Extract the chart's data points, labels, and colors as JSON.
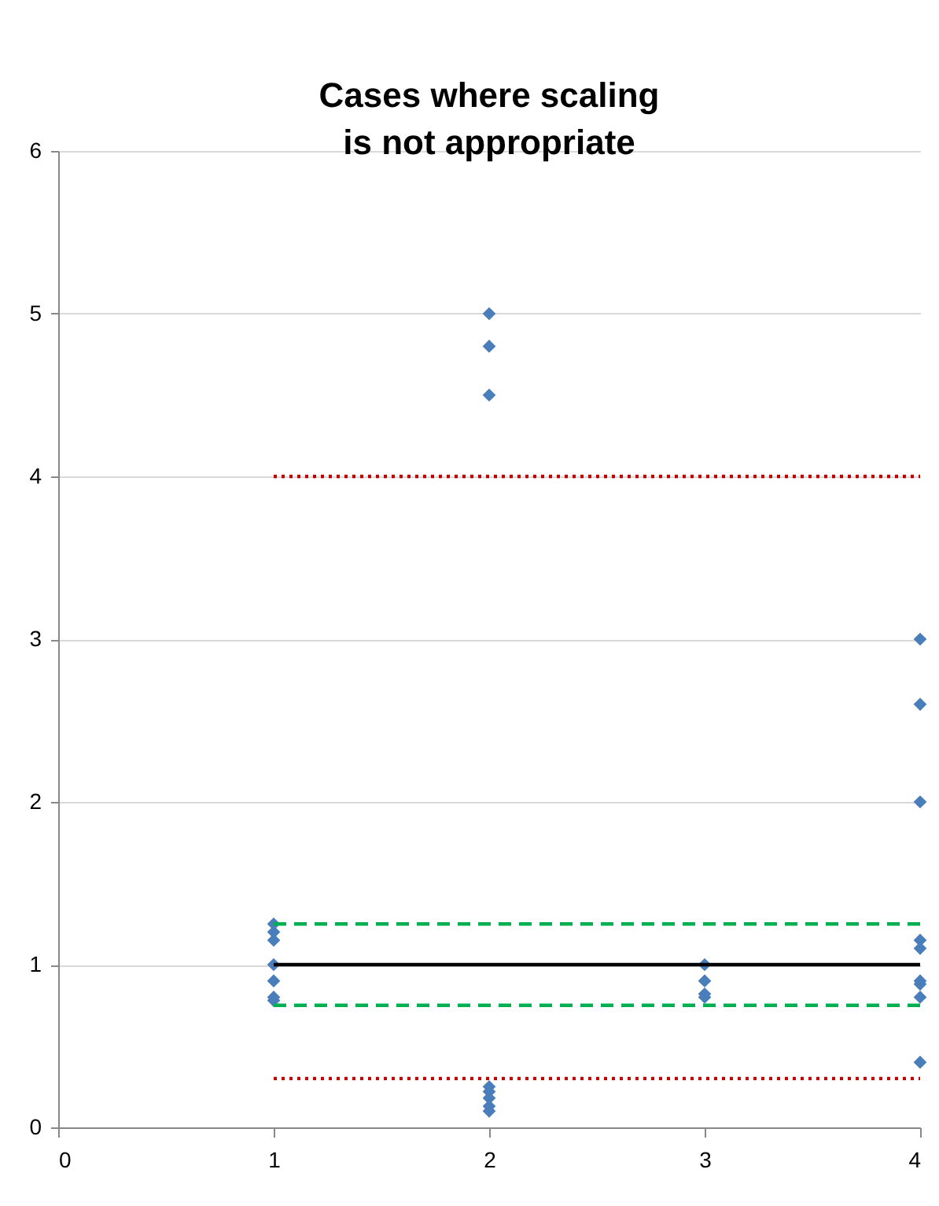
{
  "chart_data": {
    "type": "scatter",
    "title": "Cases where scaling is not appropriate",
    "xlim": [
      0,
      4
    ],
    "xticks": [
      0,
      1,
      2,
      3,
      4
    ],
    "ylim": [
      0,
      6
    ],
    "yticks": [
      0,
      1,
      2,
      3,
      4,
      5,
      6
    ],
    "grid": "y",
    "series": [
      {
        "marker": "diamond",
        "color": "#4a7ebb",
        "x": [
          1,
          1,
          1,
          1,
          1,
          1,
          1,
          2,
          2,
          2,
          2,
          2,
          2,
          2,
          2,
          3,
          3,
          3,
          3,
          4,
          4,
          4,
          4,
          4,
          4,
          4,
          4,
          4
        ],
        "values": [
          1.25,
          1.2,
          1.15,
          1.0,
          0.9,
          0.8,
          0.78,
          5.0,
          4.8,
          4.5,
          0.25,
          0.22,
          0.18,
          0.13,
          0.1,
          1.0,
          0.9,
          0.82,
          0.8,
          3.0,
          2.6,
          2.0,
          1.15,
          1.1,
          0.9,
          0.88,
          0.8,
          0.4
        ]
      },
      {
        "type": "line",
        "color": "#c00000",
        "line_style": "dotted",
        "x": [
          1,
          4
        ],
        "values": [
          4,
          4
        ]
      },
      {
        "type": "line",
        "color": "#00b050",
        "line_style": "dashed",
        "x": [
          1,
          4
        ],
        "values": [
          1.25,
          1.25
        ]
      },
      {
        "type": "line",
        "color": "#000000",
        "line_style": "solid",
        "x": [
          1,
          4
        ],
        "values": [
          1,
          1
        ]
      },
      {
        "type": "line",
        "color": "#00b050",
        "line_style": "dashed",
        "x": [
          1,
          4
        ],
        "values": [
          0.75,
          0.75
        ]
      },
      {
        "type": "line",
        "color": "#c00000",
        "line_style": "dotted",
        "x": [
          1,
          4
        ],
        "values": [
          0.3,
          0.3
        ]
      }
    ]
  }
}
